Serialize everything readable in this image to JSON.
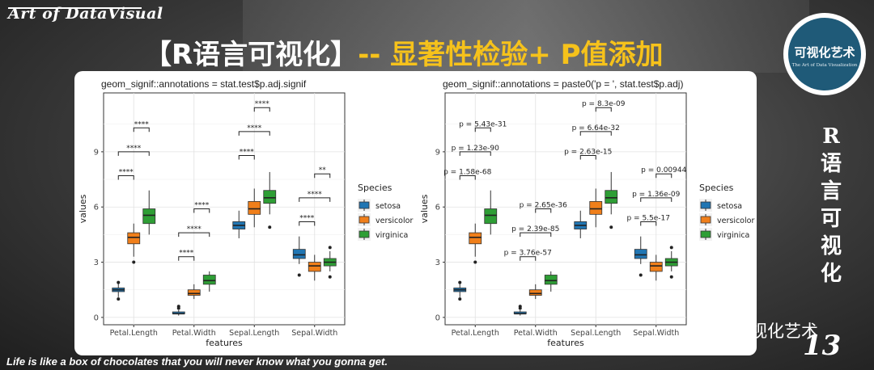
{
  "brand": "Art of DataVisual",
  "headline": {
    "white_part": "【R语言可视化】",
    "yellow_part": "-- 显著性检验+ P值添加"
  },
  "logo": {
    "title": "可视化艺术",
    "subtitle": "The Art of Data Visualization"
  },
  "vertical_title": [
    "R",
    "语",
    "言",
    "可",
    "视",
    "化"
  ],
  "wechat_name": "可视化艺术",
  "page_number": "13",
  "quote": "Life is like a box of chocolates that you will never know what you gonna get.",
  "colors": {
    "setosa": "#2176b3",
    "versicolor": "#f07f1a",
    "virginica": "#2e9e35",
    "accent_yellow": "#f6c21b"
  },
  "chart_data": [
    {
      "type": "boxplot",
      "title": "geom_signif::annotations = stat.test$p.adj.signif",
      "xlabel": "features",
      "ylabel": "values",
      "categories": [
        "Petal.Length",
        "Petal.Width",
        "Sepal.Length",
        "Sepal.Width"
      ],
      "yticks": [
        0,
        3,
        6,
        9
      ],
      "ylim": [
        -0.4,
        12.2
      ],
      "grid": true,
      "legend": {
        "title": "Species",
        "placement": "right",
        "entries": [
          "setosa",
          "versicolor",
          "virginica"
        ]
      },
      "series": [
        {
          "name": "setosa",
          "boxes": [
            {
              "min": 1.1,
              "q1": 1.4,
              "median": 1.5,
              "q3": 1.6,
              "max": 1.9,
              "outliers": [
                1.0,
                1.9
              ]
            },
            {
              "min": 0.1,
              "q1": 0.2,
              "median": 0.2,
              "q3": 0.3,
              "max": 0.4,
              "outliers": [
                0.5,
                0.6
              ]
            },
            {
              "min": 4.3,
              "q1": 4.8,
              "median": 5.0,
              "q3": 5.2,
              "max": 5.8,
              "outliers": []
            },
            {
              "min": 2.9,
              "q1": 3.2,
              "median": 3.4,
              "q3": 3.7,
              "max": 4.4,
              "outliers": [
                2.3
              ]
            }
          ]
        },
        {
          "name": "versicolor",
          "boxes": [
            {
              "min": 3.3,
              "q1": 4.0,
              "median": 4.35,
              "q3": 4.6,
              "max": 5.1,
              "outliers": [
                3.0
              ]
            },
            {
              "min": 1.0,
              "q1": 1.2,
              "median": 1.3,
              "q3": 1.5,
              "max": 1.8,
              "outliers": []
            },
            {
              "min": 4.9,
              "q1": 5.6,
              "median": 5.9,
              "q3": 6.3,
              "max": 7.0,
              "outliers": []
            },
            {
              "min": 2.0,
              "q1": 2.5,
              "median": 2.8,
              "q3": 3.0,
              "max": 3.4,
              "outliers": []
            }
          ]
        },
        {
          "name": "virginica",
          "boxes": [
            {
              "min": 4.5,
              "q1": 5.1,
              "median": 5.55,
              "q3": 5.9,
              "max": 6.9,
              "outliers": []
            },
            {
              "min": 1.4,
              "q1": 1.8,
              "median": 2.0,
              "q3": 2.3,
              "max": 2.5,
              "outliers": []
            },
            {
              "min": 5.6,
              "q1": 6.2,
              "median": 6.5,
              "q3": 6.9,
              "max": 7.9,
              "outliers": [
                4.9
              ]
            },
            {
              "min": 2.5,
              "q1": 2.8,
              "median": 3.0,
              "q3": 3.2,
              "max": 3.6,
              "outliers": [
                2.2,
                3.8
              ]
            }
          ]
        }
      ],
      "annotations": [
        {
          "category": 0,
          "from": 0,
          "to": 1,
          "y": 7.7,
          "label": "****"
        },
        {
          "category": 0,
          "from": 0,
          "to": 2,
          "y": 9.0,
          "label": "****"
        },
        {
          "category": 0,
          "from": 1,
          "to": 2,
          "y": 10.3,
          "label": "****"
        },
        {
          "category": 1,
          "from": 0,
          "to": 1,
          "y": 3.3,
          "label": "****"
        },
        {
          "category": 1,
          "from": 0,
          "to": 2,
          "y": 4.6,
          "label": "****"
        },
        {
          "category": 1,
          "from": 1,
          "to": 2,
          "y": 5.9,
          "label": "****"
        },
        {
          "category": 2,
          "from": 0,
          "to": 1,
          "y": 8.8,
          "label": "****"
        },
        {
          "category": 2,
          "from": 0,
          "to": 2,
          "y": 10.1,
          "label": "****"
        },
        {
          "category": 2,
          "from": 1,
          "to": 2,
          "y": 11.4,
          "label": "****"
        },
        {
          "category": 3,
          "from": 0,
          "to": 1,
          "y": 5.2,
          "label": "****"
        },
        {
          "category": 3,
          "from": 0,
          "to": 2,
          "y": 6.5,
          "label": "****"
        },
        {
          "category": 3,
          "from": 1,
          "to": 2,
          "y": 7.8,
          "label": "**"
        }
      ]
    },
    {
      "type": "boxplot",
      "title": "geom_signif::annotations = paste0('p = ', stat.test$p.adj)",
      "xlabel": "features",
      "ylabel": "values",
      "categories": [
        "Petal.Length",
        "Petal.Width",
        "Sepal.Length",
        "Sepal.Width"
      ],
      "yticks": [
        0,
        3,
        6,
        9
      ],
      "ylim": [
        -0.4,
        12.2
      ],
      "grid": true,
      "legend": {
        "title": "Species",
        "placement": "right",
        "entries": [
          "setosa",
          "versicolor",
          "virginica"
        ]
      },
      "series": [
        {
          "name": "setosa",
          "boxes": [
            {
              "min": 1.1,
              "q1": 1.4,
              "median": 1.5,
              "q3": 1.6,
              "max": 1.9,
              "outliers": [
                1.0,
                1.9
              ]
            },
            {
              "min": 0.1,
              "q1": 0.2,
              "median": 0.2,
              "q3": 0.3,
              "max": 0.4,
              "outliers": [
                0.5,
                0.6
              ]
            },
            {
              "min": 4.3,
              "q1": 4.8,
              "median": 5.0,
              "q3": 5.2,
              "max": 5.8,
              "outliers": []
            },
            {
              "min": 2.9,
              "q1": 3.2,
              "median": 3.4,
              "q3": 3.7,
              "max": 4.4,
              "outliers": [
                2.3
              ]
            }
          ]
        },
        {
          "name": "versicolor",
          "boxes": [
            {
              "min": 3.3,
              "q1": 4.0,
              "median": 4.35,
              "q3": 4.6,
              "max": 5.1,
              "outliers": [
                3.0
              ]
            },
            {
              "min": 1.0,
              "q1": 1.2,
              "median": 1.3,
              "q3": 1.5,
              "max": 1.8,
              "outliers": []
            },
            {
              "min": 4.9,
              "q1": 5.6,
              "median": 5.9,
              "q3": 6.3,
              "max": 7.0,
              "outliers": []
            },
            {
              "min": 2.0,
              "q1": 2.5,
              "median": 2.8,
              "q3": 3.0,
              "max": 3.4,
              "outliers": []
            }
          ]
        },
        {
          "name": "virginica",
          "boxes": [
            {
              "min": 4.5,
              "q1": 5.1,
              "median": 5.55,
              "q3": 5.9,
              "max": 6.9,
              "outliers": []
            },
            {
              "min": 1.4,
              "q1": 1.8,
              "median": 2.0,
              "q3": 2.3,
              "max": 2.5,
              "outliers": []
            },
            {
              "min": 5.6,
              "q1": 6.2,
              "median": 6.5,
              "q3": 6.9,
              "max": 7.9,
              "outliers": [
                4.9
              ]
            },
            {
              "min": 2.5,
              "q1": 2.8,
              "median": 3.0,
              "q3": 3.2,
              "max": 3.6,
              "outliers": [
                2.2,
                3.8
              ]
            }
          ]
        }
      ],
      "annotations": [
        {
          "category": 0,
          "from": 0,
          "to": 1,
          "y": 7.7,
          "label": "p = 1.58e-68"
        },
        {
          "category": 0,
          "from": 0,
          "to": 2,
          "y": 9.0,
          "label": "p = 1.23e-90"
        },
        {
          "category": 0,
          "from": 1,
          "to": 2,
          "y": 10.3,
          "label": "p = 5.43e-31"
        },
        {
          "category": 1,
          "from": 0,
          "to": 1,
          "y": 3.3,
          "label": "p = 3.76e-57"
        },
        {
          "category": 1,
          "from": 0,
          "to": 2,
          "y": 4.6,
          "label": "p = 2.39e-85"
        },
        {
          "category": 1,
          "from": 1,
          "to": 2,
          "y": 5.9,
          "label": "p = 2.65e-36"
        },
        {
          "category": 2,
          "from": 0,
          "to": 1,
          "y": 8.8,
          "label": "p = 2.63e-15"
        },
        {
          "category": 2,
          "from": 0,
          "to": 2,
          "y": 10.1,
          "label": "p = 6.64e-32"
        },
        {
          "category": 2,
          "from": 1,
          "to": 2,
          "y": 11.4,
          "label": "p = 8.3e-09"
        },
        {
          "category": 3,
          "from": 0,
          "to": 1,
          "y": 5.2,
          "label": "p = 5.5e-17"
        },
        {
          "category": 3,
          "from": 0,
          "to": 2,
          "y": 6.5,
          "label": "p = 1.36e-09"
        },
        {
          "category": 3,
          "from": 1,
          "to": 2,
          "y": 7.8,
          "label": "p = 0.00944"
        }
      ]
    }
  ]
}
